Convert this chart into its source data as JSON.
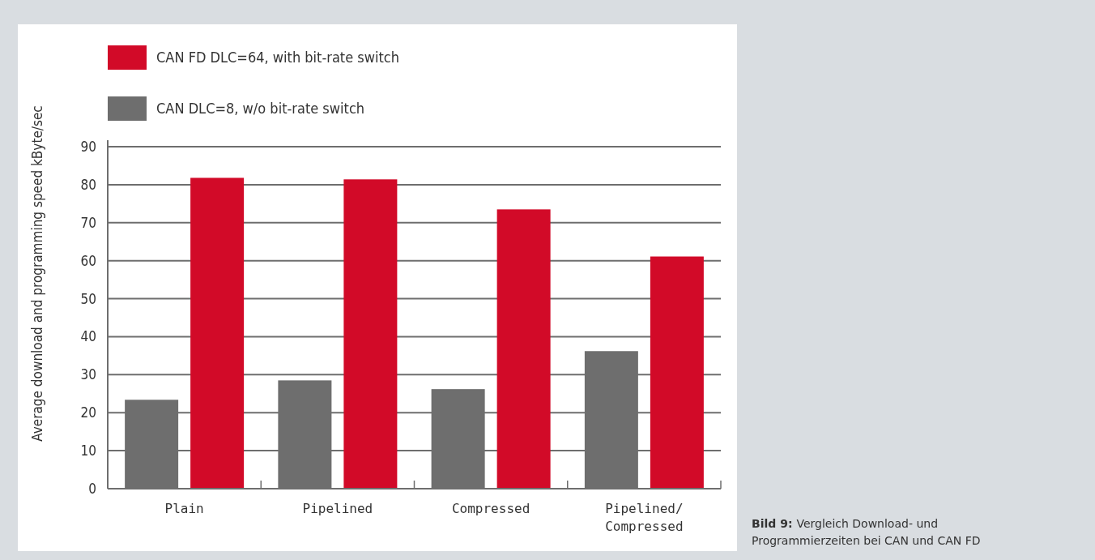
{
  "chart_data": {
    "type": "bar",
    "ylabel": "Average download and programming speed kByte/sec",
    "categories": [
      "Plain",
      "Pipelined",
      "Compressed",
      "Pipelined/Compressed"
    ],
    "series": [
      {
        "name": "CAN DLC=8, w/o bit-rate switch",
        "color": "#6e6e6e",
        "values": [
          23.4,
          28.5,
          26.2,
          36.2
        ]
      },
      {
        "name": "CAN FD DLC=64, with bit-rate switch",
        "color": "#d20a28",
        "values": [
          81.8,
          81.4,
          73.5,
          61.1
        ]
      }
    ],
    "ylim": [
      0,
      90
    ],
    "yticks": [
      0,
      10,
      20,
      30,
      40,
      50,
      60,
      70,
      80,
      90
    ],
    "grid": "y",
    "legend": "top left",
    "annotations": [
      "Bild 9: Vergleich Download- und Programmierzeiten bei CAN und CAN FD"
    ]
  }
}
